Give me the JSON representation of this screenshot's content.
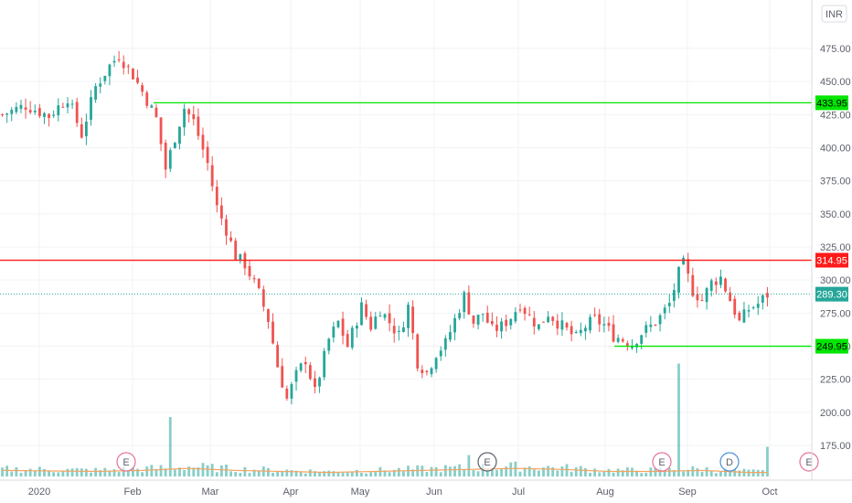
{
  "chart_data": {
    "type": "candlestick",
    "currency": "INR",
    "y_axis": {
      "ticks": [
        175,
        200,
        225,
        250,
        275,
        300,
        325,
        350,
        375,
        400,
        425,
        450,
        475
      ],
      "tick_labels": [
        "175.00",
        "200.00",
        "225.00",
        "250.00",
        "275.00",
        "300.00",
        "325.00",
        "350.00",
        "375.00",
        "400.00",
        "425.00",
        "450.00",
        "475.00"
      ],
      "range": [
        145,
        500
      ]
    },
    "x_axis": {
      "labels": [
        "2020",
        "Feb",
        "Mar",
        "Apr",
        "May",
        "Jun",
        "Jul",
        "Aug",
        "Sep",
        "Oct"
      ]
    },
    "levels": [
      {
        "value": 433.95,
        "label": "433.95",
        "color": "#00e600",
        "from_month": "Feb"
      },
      {
        "value": 314.95,
        "label": "314.95",
        "color": "#ff1a1a",
        "from_month": "2020"
      },
      {
        "value": 249.95,
        "label": "249.95",
        "color": "#00e600",
        "from_month": "Aug"
      }
    ],
    "last_price": {
      "value": 289.3,
      "label": "289.30",
      "color": "#26a69a"
    },
    "events": [
      {
        "label": "E",
        "month": "Feb",
        "color": "#e57399"
      },
      {
        "label": "E",
        "month": "Jun",
        "color": "#5d606b"
      },
      {
        "label": "E",
        "month": "Aug",
        "color": "#e57399"
      },
      {
        "label": "D",
        "month": "Sep",
        "color": "#4a90d9"
      },
      {
        "label": "E",
        "month": "Oct",
        "color": "#e57399"
      }
    ],
    "close_path": [
      [
        0,
        425
      ],
      [
        5,
        432
      ],
      [
        10,
        424
      ],
      [
        14,
        438
      ],
      [
        17,
        410
      ],
      [
        20,
        446
      ],
      [
        23,
        462
      ],
      [
        25,
        470
      ],
      [
        28,
        455
      ],
      [
        31,
        436
      ],
      [
        33,
        422
      ],
      [
        35,
        384
      ],
      [
        37,
        408
      ],
      [
        39,
        430
      ],
      [
        41,
        420
      ],
      [
        44,
        388
      ],
      [
        46,
        355
      ],
      [
        48,
        338
      ],
      [
        50,
        318
      ],
      [
        52,
        312
      ],
      [
        55,
        290
      ],
      [
        57,
        270
      ],
      [
        59,
        235
      ],
      [
        61,
        210
      ],
      [
        63,
        228
      ],
      [
        65,
        240
      ],
      [
        67,
        215
      ],
      [
        70,
        255
      ],
      [
        72,
        268
      ],
      [
        74,
        250
      ],
      [
        77,
        280
      ],
      [
        79,
        265
      ],
      [
        81,
        278
      ],
      [
        83,
        268
      ],
      [
        85,
        258
      ],
      [
        87,
        280
      ],
      [
        89,
        238
      ],
      [
        91,
        230
      ],
      [
        93,
        245
      ],
      [
        95,
        252
      ],
      [
        97,
        270
      ],
      [
        99,
        288
      ],
      [
        101,
        268
      ],
      [
        103,
        275
      ],
      [
        105,
        262
      ],
      [
        107,
        265
      ],
      [
        109,
        272
      ],
      [
        111,
        282
      ],
      [
        113,
        272
      ],
      [
        115,
        265
      ],
      [
        117,
        275
      ],
      [
        119,
        268
      ],
      [
        121,
        262
      ],
      [
        123,
        256
      ],
      [
        125,
        265
      ],
      [
        127,
        270
      ],
      [
        129,
        266
      ],
      [
        131,
        258
      ],
      [
        133,
        255
      ],
      [
        135,
        252
      ],
      [
        137,
        260
      ],
      [
        139,
        265
      ],
      [
        141,
        272
      ],
      [
        143,
        282
      ],
      [
        145,
        305
      ],
      [
        146,
        312
      ],
      [
        148,
        292
      ],
      [
        150,
        285
      ],
      [
        152,
        298
      ],
      [
        154,
        302
      ],
      [
        156,
        285
      ],
      [
        158,
        268
      ],
      [
        160,
        278
      ],
      [
        162,
        282
      ],
      [
        164,
        289
      ]
    ],
    "volume_path": [
      [
        0,
        0.06
      ],
      [
        20,
        0.05
      ],
      [
        30,
        0.06
      ],
      [
        40,
        0.08
      ],
      [
        50,
        0.06
      ],
      [
        60,
        0.05
      ],
      [
        70,
        0.04
      ],
      [
        80,
        0.05
      ],
      [
        90,
        0.06
      ],
      [
        100,
        0.07
      ],
      [
        110,
        0.08
      ],
      [
        120,
        0.07
      ],
      [
        130,
        0.05
      ],
      [
        140,
        0.05
      ],
      [
        150,
        0.06
      ],
      [
        160,
        0.04
      ],
      [
        165,
        0.04
      ]
    ],
    "volume_spikes": [
      [
        36,
        0.5
      ],
      [
        100,
        0.18
      ],
      [
        145,
        0.95
      ],
      [
        164,
        0.25
      ]
    ]
  }
}
